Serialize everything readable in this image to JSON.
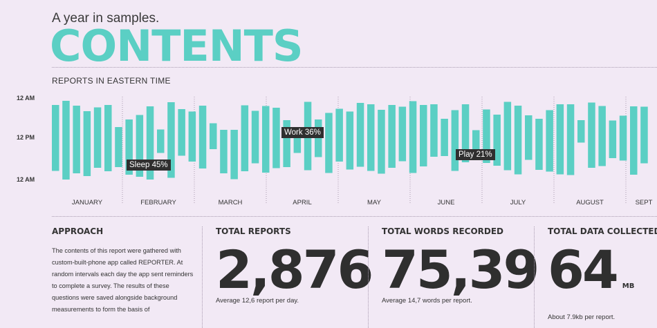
{
  "header": {
    "subtitle": "A year in samples.",
    "title": "CONTENTS"
  },
  "chart_section": {
    "label": "REPORTS IN EASTERN TIME"
  },
  "chart_data": {
    "type": "bar",
    "title": "REPORTS IN EASTERN TIME",
    "ylabel_ticks": [
      "12 AM",
      "12 PM",
      "12 AM"
    ],
    "months": [
      "JANUARY",
      "FEBRUARY",
      "MARCH",
      "APRIL",
      "MAY",
      "JUNE",
      "JULY",
      "AUGUST",
      "SEPT"
    ],
    "bar_spans_hours": [
      [
        2.4,
        21.5
      ],
      [
        1.2,
        24
      ],
      [
        2.6,
        22.2
      ],
      [
        4.2,
        23
      ],
      [
        3.1,
        20.6
      ],
      [
        2.4,
        21.6
      ],
      [
        8.8,
        20.4
      ],
      [
        6.6,
        22.6
      ],
      [
        5.3,
        23.2
      ],
      [
        2.8,
        24
      ],
      [
        9.5,
        16.3
      ],
      [
        1.6,
        23.5
      ],
      [
        3.6,
        17.1
      ],
      [
        4.3,
        18.8
      ],
      [
        2.6,
        20.8
      ],
      [
        7.7,
        15.2
      ],
      [
        9.6,
        22.2
      ],
      [
        9.6,
        23.9
      ],
      [
        2.5,
        21.6
      ],
      [
        4.1,
        19.3
      ],
      [
        2.7,
        22
      ],
      [
        3.2,
        20.7
      ],
      [
        6.8,
        20.4
      ],
      [
        9.7,
        16.3
      ],
      [
        1.5,
        21.3
      ],
      [
        6.6,
        17.5
      ],
      [
        4.7,
        22.1
      ],
      [
        3.5,
        18.8
      ],
      [
        4.3,
        21.1
      ],
      [
        1.8,
        20.3
      ],
      [
        2.2,
        21.5
      ],
      [
        3.8,
        22.3
      ],
      [
        2.4,
        20.6
      ],
      [
        2.9,
        18.7
      ],
      [
        1.3,
        22.1
      ],
      [
        2.4,
        20.2
      ],
      [
        2.2,
        17.4
      ],
      [
        6.4,
        17.2
      ],
      [
        3.9,
        21.5
      ],
      [
        2.2,
        19
      ],
      [
        9.7,
        18.4
      ],
      [
        3.7,
        19.2
      ],
      [
        5.2,
        20
      ],
      [
        1.5,
        21.3
      ],
      [
        2.6,
        22.5
      ],
      [
        5.4,
        18.3
      ],
      [
        6.4,
        21.2
      ],
      [
        3.9,
        21.7
      ],
      [
        2.2,
        22.5
      ],
      [
        2.2,
        22.7
      ],
      [
        6.8,
        13.3
      ],
      [
        1.7,
        20.6
      ],
      [
        2.7,
        20.1
      ],
      [
        6.9,
        17.8
      ],
      [
        5.5,
        18.5
      ],
      [
        2.8,
        22.6
      ],
      [
        2.9,
        19.3
      ],
      [
        9.2,
        14.7
      ],
      [
        1.2,
        23.9
      ],
      [
        2.1,
        22.5
      ],
      [
        2.1,
        22.1
      ],
      [
        5.3,
        18.8
      ],
      [
        6.6,
        21.1
      ],
      [
        6.3,
        23.8
      ],
      [
        2.1,
        20.6
      ],
      [
        4.9,
        22.1
      ],
      [
        4.6,
        16.6
      ],
      [
        3.7,
        18.5
      ],
      [
        1.2,
        22.5
      ],
      [
        8.4,
        15.8
      ],
      [
        1.8,
        22
      ],
      [
        3.4,
        20.3
      ],
      [
        6.4,
        20.9
      ],
      [
        4.3,
        23.3
      ],
      [
        6.2,
        19.4
      ],
      [
        2.3,
        23.7
      ],
      [
        3.5,
        21.6
      ],
      [
        2.5,
        19.4
      ],
      [
        8.6,
        18.2
      ],
      [
        2.1,
        16.8
      ],
      [
        7.8,
        16.2
      ],
      [
        2.3,
        20.7
      ]
    ],
    "annotations": [
      "Sleep 45%",
      "Work 36%",
      "Play 21%"
    ]
  },
  "stats": {
    "approach": {
      "heading": "APPROACH",
      "text": "The contents of this report were gathered with custom-built-phone app called REPORTER. At random intervals each day the app sent reminders to complete a survey. The results of these questions were saved alongside background measurements to form the basis of"
    },
    "reports": {
      "heading": "TOTAL REPORTS",
      "value": "2,876",
      "note": "Average 12,6 report per day."
    },
    "words": {
      "heading": "TOTAL WORDS RECORDED",
      "value": "75,39",
      "note": "Average 14,7 words per report."
    },
    "data": {
      "heading": "TOTAL DATA COLLECTED",
      "value": "64",
      "unit": "MB",
      "note": "About 7.9kb per report."
    }
  },
  "colors": {
    "accent": "#5bcfc4",
    "background": "#f2e9f5",
    "dark": "#2f2f2f"
  }
}
